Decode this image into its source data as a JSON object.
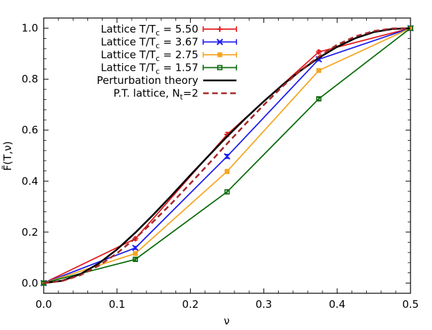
{
  "chart_data": {
    "type": "line",
    "xlabel": "ν",
    "ylabel": "F̃(T,ν)",
    "xlim": [
      0.0,
      0.5
    ],
    "ylim": [
      -0.04,
      1.04
    ],
    "x_ticks": [
      "0.0",
      "0.1",
      "0.2",
      "0.3",
      "0.4",
      "0.5"
    ],
    "y_ticks": [
      "0.0",
      "0.2",
      "0.4",
      "0.6",
      "0.8",
      "1.0"
    ],
    "legend_position": "top-left",
    "series": [
      {
        "name": "Lattice T/Tc = 5.50",
        "label_prefix": "Lattice T/T",
        "label_sub": "c",
        "label_suffix": " = 5.50",
        "color": "#e31a1c",
        "marker": "plus",
        "style": "errorbar",
        "x": [
          0.0,
          0.125,
          0.25,
          0.375,
          0.5
        ],
        "y": [
          0.0,
          0.174,
          0.583,
          0.907,
          1.0
        ],
        "yerr": [
          0.004,
          0.006,
          0.008,
          0.006,
          0.0
        ]
      },
      {
        "name": "Lattice T/Tc = 3.67",
        "label_prefix": "Lattice T/T",
        "label_sub": "c",
        "label_suffix": " = 3.67",
        "color": "#1d1df0",
        "marker": "x",
        "style": "errorbar",
        "x": [
          0.0,
          0.125,
          0.25,
          0.375,
          0.5
        ],
        "y": [
          0.0,
          0.138,
          0.497,
          0.878,
          1.0
        ],
        "yerr": [
          0.004,
          0.006,
          0.008,
          0.006,
          0.0
        ]
      },
      {
        "name": "Lattice T/Tc = 2.75",
        "label_prefix": "Lattice T/T",
        "label_sub": "c",
        "label_suffix": " = 2.75",
        "color": "#f5a623",
        "marker": "square-filled",
        "style": "errorbar",
        "x": [
          0.0,
          0.125,
          0.25,
          0.375,
          0.5
        ],
        "y": [
          0.0,
          0.116,
          0.438,
          0.834,
          1.0
        ],
        "yerr": [
          0.004,
          0.006,
          0.008,
          0.006,
          0.0
        ]
      },
      {
        "name": "Lattice T/Tc = 1.57",
        "label_prefix": "Lattice T/T",
        "label_sub": "c",
        "label_suffix": " = 1.57",
        "color": "#0a6b0a",
        "marker": "square-open",
        "style": "errorbar",
        "x": [
          0.0,
          0.125,
          0.25,
          0.375,
          0.5
        ],
        "y": [
          0.0,
          0.093,
          0.358,
          0.723,
          1.0
        ],
        "yerr": [
          0.004,
          0.006,
          0.008,
          0.006,
          0.0
        ]
      },
      {
        "name": "Perturbation theory",
        "label_prefix": "Perturbation theory",
        "label_sub": "",
        "label_suffix": "",
        "color": "#000000",
        "style": "solid",
        "x": [
          0.0,
          0.025,
          0.05,
          0.075,
          0.1,
          0.125,
          0.15,
          0.175,
          0.2,
          0.225,
          0.25,
          0.275,
          0.3,
          0.325,
          0.35,
          0.375,
          0.4,
          0.425,
          0.45,
          0.475,
          0.5
        ],
        "y": [
          0.0,
          0.009,
          0.035,
          0.077,
          0.132,
          0.198,
          0.27,
          0.346,
          0.424,
          0.5,
          0.575,
          0.646,
          0.713,
          0.776,
          0.833,
          0.884,
          0.927,
          0.961,
          0.985,
          0.997,
          1.0
        ]
      },
      {
        "name": "P.T. lattice, Nt=2",
        "label_prefix": "P.T. lattice, N",
        "label_sub": "t",
        "label_suffix": "=2",
        "color": "#a52a2a",
        "style": "dashed",
        "x": [
          0.0,
          0.025,
          0.05,
          0.075,
          0.1,
          0.125,
          0.15,
          0.175,
          0.2,
          0.225,
          0.25,
          0.275,
          0.3,
          0.325,
          0.35,
          0.375,
          0.4,
          0.425,
          0.45,
          0.475,
          0.5
        ],
        "y": [
          0.0,
          0.008,
          0.031,
          0.068,
          0.117,
          0.176,
          0.243,
          0.315,
          0.391,
          0.468,
          0.547,
          0.624,
          0.699,
          0.77,
          0.834,
          0.889,
          0.935,
          0.968,
          0.989,
          0.999,
          1.0
        ]
      }
    ]
  }
}
